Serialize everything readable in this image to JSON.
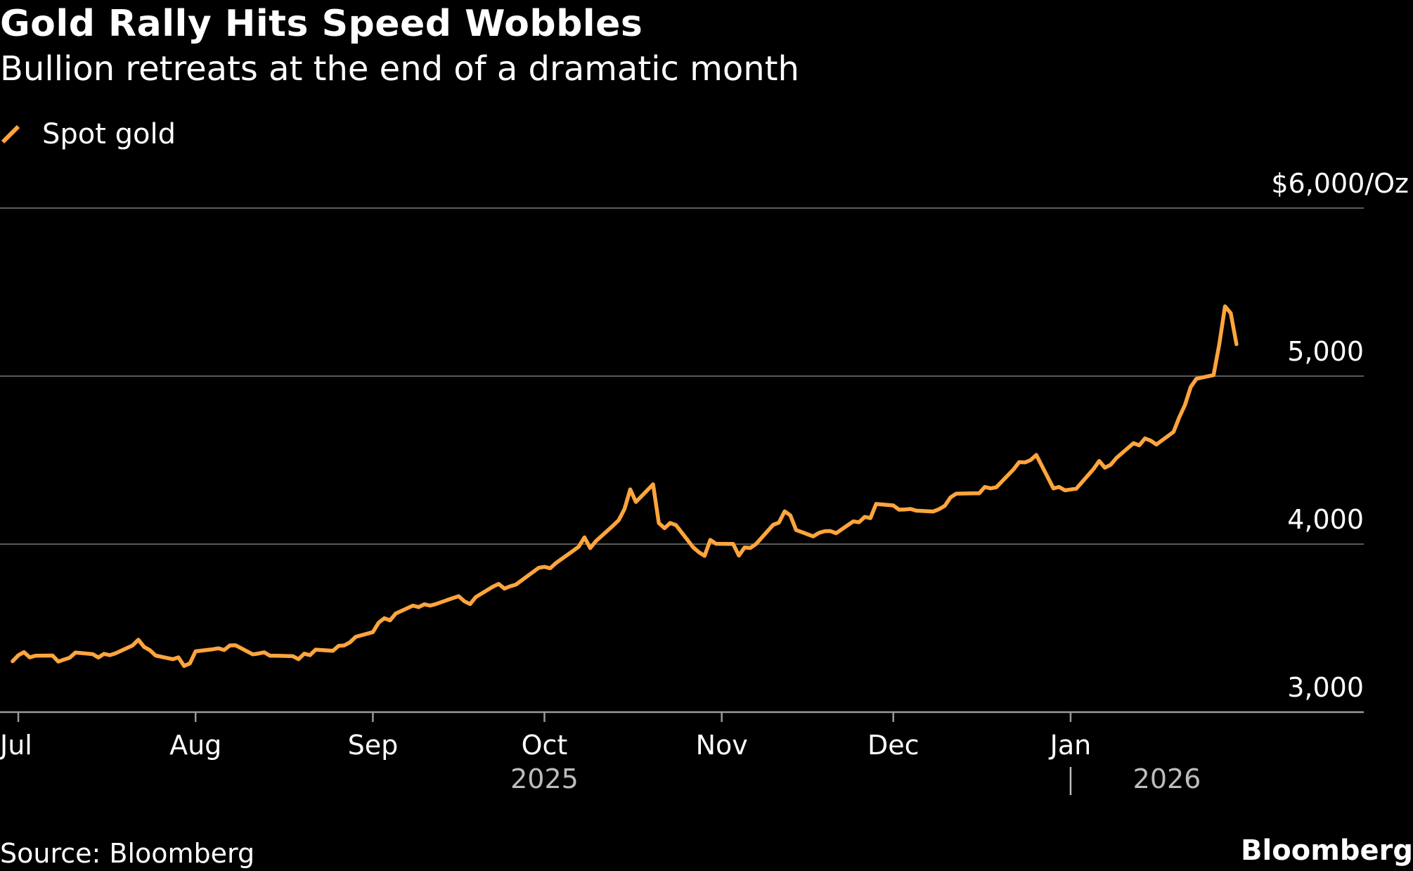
{
  "title": "Gold Rally Hits Speed Wobbles",
  "subtitle": "Bullion retreats at the end of a dramatic month",
  "source": "Source: Bloomberg",
  "brand": "Bloomberg",
  "colors": {
    "background": "#000000",
    "line": "#ffa53d",
    "grid": "#5a5a5a",
    "text": "#ffffff",
    "year_text": "#bdbdbd"
  },
  "chart_data": {
    "type": "line",
    "title": "Gold Rally Hits Speed Wobbles",
    "subtitle": "Bullion retreats at the end of a dramatic month",
    "legend": [
      "Spot gold"
    ],
    "legend_position": "top-left",
    "grid": true,
    "ylabel": "",
    "xlabel": "",
    "y_unit": "$/Oz",
    "ylim": [
      3000,
      6000
    ],
    "yticks": [
      {
        "value": 6000,
        "label": "$6,000/Oz"
      },
      {
        "value": 5000,
        "label": "5,000"
      },
      {
        "value": 4000,
        "label": "4,000"
      },
      {
        "value": 3000,
        "label": "3,000"
      }
    ],
    "xlim": [
      "2025-07-01",
      "2026-01-31"
    ],
    "xticks": [
      {
        "date": "2025-07-01",
        "label": "Jul"
      },
      {
        "date": "2025-08-01",
        "label": "Aug"
      },
      {
        "date": "2025-09-01",
        "label": "Sep"
      },
      {
        "date": "2025-10-01",
        "label": "Oct"
      },
      {
        "date": "2025-11-01",
        "label": "Nov"
      },
      {
        "date": "2025-12-01",
        "label": "Dec"
      },
      {
        "date": "2026-01-01",
        "label": "Jan"
      }
    ],
    "year_labels": [
      {
        "date": "2025-10-01",
        "label": "2025"
      },
      {
        "date": "2026-01-15",
        "label": "2026"
      }
    ],
    "year_divider": "2026-01-01",
    "series": [
      {
        "name": "Spot gold",
        "points": [
          [
            "2025-06-30",
            3303
          ],
          [
            "2025-07-01",
            3338
          ],
          [
            "2025-07-02",
            3357
          ],
          [
            "2025-07-03",
            3326
          ],
          [
            "2025-07-04",
            3336
          ],
          [
            "2025-07-07",
            3337
          ],
          [
            "2025-07-08",
            3301
          ],
          [
            "2025-07-09",
            3313
          ],
          [
            "2025-07-10",
            3324
          ],
          [
            "2025-07-11",
            3355
          ],
          [
            "2025-07-14",
            3345
          ],
          [
            "2025-07-15",
            3325
          ],
          [
            "2025-07-16",
            3347
          ],
          [
            "2025-07-17",
            3339
          ],
          [
            "2025-07-18",
            3350
          ],
          [
            "2025-07-21",
            3397
          ],
          [
            "2025-07-22",
            3431
          ],
          [
            "2025-07-23",
            3388
          ],
          [
            "2025-07-24",
            3369
          ],
          [
            "2025-07-25",
            3337
          ],
          [
            "2025-07-28",
            3315
          ],
          [
            "2025-07-29",
            3326
          ],
          [
            "2025-07-30",
            3275
          ],
          [
            "2025-07-31",
            3290
          ],
          [
            "2025-08-01",
            3362
          ],
          [
            "2025-08-04",
            3374
          ],
          [
            "2025-08-05",
            3380
          ],
          [
            "2025-08-06",
            3370
          ],
          [
            "2025-08-07",
            3397
          ],
          [
            "2025-08-08",
            3398
          ],
          [
            "2025-08-11",
            3344
          ],
          [
            "2025-08-12",
            3349
          ],
          [
            "2025-08-13",
            3356
          ],
          [
            "2025-08-14",
            3336
          ],
          [
            "2025-08-15",
            3336
          ],
          [
            "2025-08-18",
            3333
          ],
          [
            "2025-08-19",
            3315
          ],
          [
            "2025-08-20",
            3348
          ],
          [
            "2025-08-21",
            3339
          ],
          [
            "2025-08-22",
            3372
          ],
          [
            "2025-08-25",
            3365
          ],
          [
            "2025-08-26",
            3394
          ],
          [
            "2025-08-27",
            3397
          ],
          [
            "2025-08-28",
            3416
          ],
          [
            "2025-08-29",
            3448
          ],
          [
            "2025-09-01",
            3476
          ],
          [
            "2025-09-02",
            3532
          ],
          [
            "2025-09-03",
            3559
          ],
          [
            "2025-09-04",
            3546
          ],
          [
            "2025-09-05",
            3587
          ],
          [
            "2025-09-08",
            3634
          ],
          [
            "2025-09-09",
            3625
          ],
          [
            "2025-09-10",
            3642
          ],
          [
            "2025-09-11",
            3634
          ],
          [
            "2025-09-12",
            3643
          ],
          [
            "2025-09-15",
            3679
          ],
          [
            "2025-09-16",
            3690
          ],
          [
            "2025-09-17",
            3660
          ],
          [
            "2025-09-18",
            3643
          ],
          [
            "2025-09-19",
            3685
          ],
          [
            "2025-09-22",
            3747
          ],
          [
            "2025-09-23",
            3763
          ],
          [
            "2025-09-24",
            3735
          ],
          [
            "2025-09-25",
            3749
          ],
          [
            "2025-09-26",
            3759
          ],
          [
            "2025-09-29",
            3834
          ],
          [
            "2025-09-30",
            3859
          ],
          [
            "2025-10-01",
            3865
          ],
          [
            "2025-10-02",
            3856
          ],
          [
            "2025-10-03",
            3887
          ],
          [
            "2025-10-06",
            3960
          ],
          [
            "2025-10-07",
            3985
          ],
          [
            "2025-10-08",
            4040
          ],
          [
            "2025-10-09",
            3976
          ],
          [
            "2025-10-10",
            4018
          ],
          [
            "2025-10-13",
            4110
          ],
          [
            "2025-10-14",
            4143
          ],
          [
            "2025-10-15",
            4209
          ],
          [
            "2025-10-16",
            4326
          ],
          [
            "2025-10-17",
            4251
          ],
          [
            "2025-10-20",
            4356
          ],
          [
            "2025-10-21",
            4125
          ],
          [
            "2025-10-22",
            4095
          ],
          [
            "2025-10-23",
            4126
          ],
          [
            "2025-10-24",
            4113
          ],
          [
            "2025-10-27",
            3981
          ],
          [
            "2025-10-28",
            3952
          ],
          [
            "2025-10-29",
            3930
          ],
          [
            "2025-10-30",
            4025
          ],
          [
            "2025-10-31",
            4002
          ],
          [
            "2025-11-03",
            4001
          ],
          [
            "2025-11-04",
            3932
          ],
          [
            "2025-11-05",
            3980
          ],
          [
            "2025-11-06",
            3977
          ],
          [
            "2025-11-07",
            4001
          ],
          [
            "2025-11-10",
            4115
          ],
          [
            "2025-11-11",
            4128
          ],
          [
            "2025-11-12",
            4195
          ],
          [
            "2025-11-13",
            4171
          ],
          [
            "2025-11-14",
            4084
          ],
          [
            "2025-11-17",
            4046
          ],
          [
            "2025-11-18",
            4067
          ],
          [
            "2025-11-19",
            4077
          ],
          [
            "2025-11-20",
            4078
          ],
          [
            "2025-11-21",
            4065
          ],
          [
            "2025-11-24",
            4135
          ],
          [
            "2025-11-25",
            4130
          ],
          [
            "2025-11-26",
            4162
          ],
          [
            "2025-11-27",
            4155
          ],
          [
            "2025-11-28",
            4239
          ],
          [
            "2025-12-01",
            4230
          ],
          [
            "2025-12-02",
            4205
          ],
          [
            "2025-12-03",
            4206
          ],
          [
            "2025-12-04",
            4209
          ],
          [
            "2025-12-05",
            4199
          ],
          [
            "2025-12-08",
            4194
          ],
          [
            "2025-12-09",
            4208
          ],
          [
            "2025-12-10",
            4228
          ],
          [
            "2025-12-11",
            4278
          ],
          [
            "2025-12-12",
            4300
          ],
          [
            "2025-12-15",
            4302
          ],
          [
            "2025-12-16",
            4302
          ],
          [
            "2025-12-17",
            4340
          ],
          [
            "2025-12-18",
            4332
          ],
          [
            "2025-12-19",
            4338
          ],
          [
            "2025-12-22",
            4444
          ],
          [
            "2025-12-23",
            4488
          ],
          [
            "2025-12-24",
            4486
          ],
          [
            "2025-12-25",
            4500
          ],
          [
            "2025-12-26",
            4531
          ],
          [
            "2025-12-29",
            4332
          ],
          [
            "2025-12-30",
            4340
          ],
          [
            "2025-12-31",
            4320
          ],
          [
            "2026-01-01",
            4325
          ],
          [
            "2026-01-02",
            4330
          ],
          [
            "2026-01-05",
            4447
          ],
          [
            "2026-01-06",
            4495
          ],
          [
            "2026-01-07",
            4455
          ],
          [
            "2026-01-08",
            4472
          ],
          [
            "2026-01-09",
            4512
          ],
          [
            "2026-01-12",
            4601
          ],
          [
            "2026-01-13",
            4588
          ],
          [
            "2026-01-14",
            4629
          ],
          [
            "2026-01-15",
            4616
          ],
          [
            "2026-01-16",
            4593
          ],
          [
            "2026-01-19",
            4668
          ],
          [
            "2026-01-20",
            4755
          ],
          [
            "2026-01-21",
            4828
          ],
          [
            "2026-01-22",
            4935
          ],
          [
            "2026-01-23",
            4984
          ],
          [
            "2026-01-26",
            5006
          ],
          [
            "2026-01-27",
            5191
          ],
          [
            "2026-01-28",
            5415
          ],
          [
            "2026-01-29",
            5375
          ],
          [
            "2026-01-30",
            5190
          ]
        ]
      }
    ]
  }
}
